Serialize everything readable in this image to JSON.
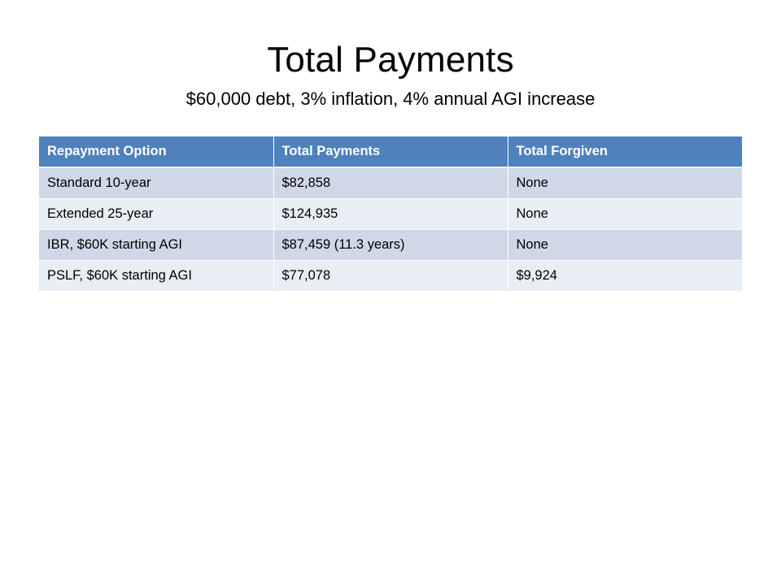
{
  "slide": {
    "title": "Total Payments",
    "subtitle": "$60,000 debt, 3% inflation, 4% annual AGI increase"
  },
  "table": {
    "headers": [
      "Repayment Option",
      "Total Payments",
      "Total Forgiven"
    ],
    "rows": [
      [
        "Standard 10-year",
        "$82,858",
        "None"
      ],
      [
        "Extended 25-year",
        "$124,935",
        "None"
      ],
      [
        "IBR, $60K starting AGI",
        "$87,459 (11.3 years)",
        "None"
      ],
      [
        "PSLF, $60K starting AGI",
        "$77,078",
        "$9,924"
      ]
    ]
  },
  "colors": {
    "header_bg": "#4f81bd",
    "row_band_1": "#d0d8e8",
    "row_band_2": "#e9edf4"
  }
}
